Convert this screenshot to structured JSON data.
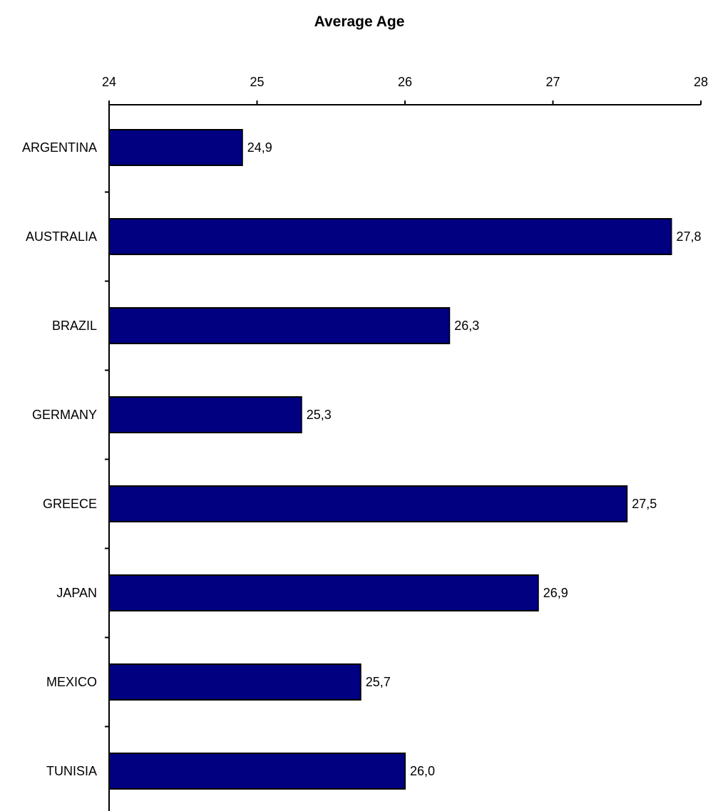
{
  "chart_data": {
    "type": "bar",
    "orientation": "horizontal",
    "title": "Average Age",
    "xlabel": "",
    "ylabel": "",
    "xlim": [
      24,
      28
    ],
    "ticks": [
      24,
      25,
      26,
      27,
      28
    ],
    "tick_labels": [
      "24",
      "25",
      "26",
      "27",
      "28"
    ],
    "value_axis_position": "top",
    "grid": false,
    "legend": "none",
    "categories": [
      "ARGENTINA",
      "AUSTRALIA",
      "BRAZIL",
      "GERMANY",
      "GREECE",
      "JAPAN",
      "MEXICO",
      "TUNISIA"
    ],
    "values": [
      24.9,
      27.8,
      26.3,
      25.3,
      27.5,
      26.9,
      25.7,
      26.0
    ],
    "value_labels": [
      "24,9",
      "27,8",
      "26,3",
      "25,3",
      "27,5",
      "26,9",
      "25,7",
      "26,0"
    ],
    "colors": {
      "bar_fill": "#000080",
      "bar_stroke": "#000000",
      "axis": "#000000",
      "text": "#000000",
      "background": "#ffffff"
    }
  }
}
